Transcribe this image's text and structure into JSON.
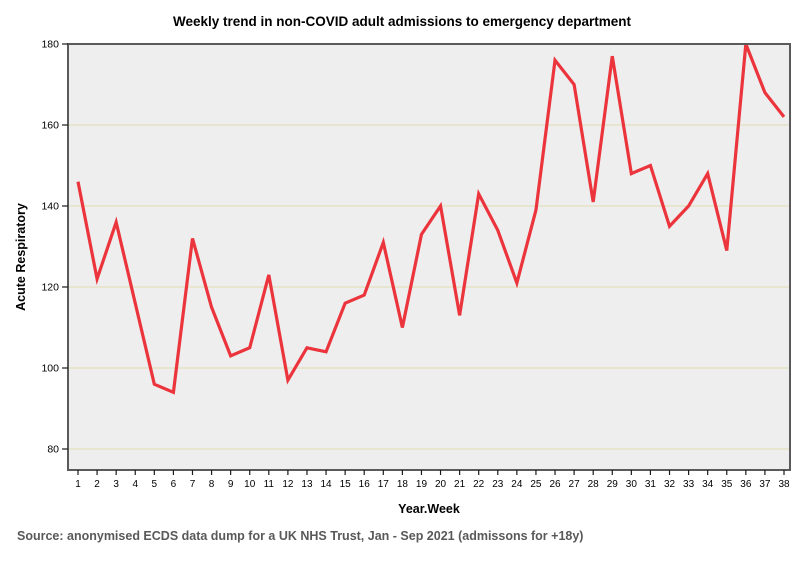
{
  "chart_data": {
    "type": "line",
    "title": "Weekly trend in non-COVID adult admissions to emergency department",
    "xlabel": "Year.Week",
    "ylabel": "Acute Respiratory",
    "x": [
      1,
      2,
      3,
      4,
      5,
      6,
      7,
      8,
      9,
      10,
      11,
      12,
      13,
      14,
      15,
      16,
      17,
      18,
      19,
      20,
      21,
      22,
      23,
      24,
      25,
      26,
      27,
      28,
      29,
      30,
      31,
      32,
      33,
      34,
      35,
      36,
      37,
      38
    ],
    "values": [
      146,
      122,
      136,
      116,
      96,
      94,
      132,
      115,
      103,
      105,
      123,
      97,
      105,
      104,
      116,
      118,
      131,
      110,
      133,
      140,
      113,
      143,
      134,
      121,
      139,
      176,
      170,
      141,
      177,
      148,
      150,
      135,
      140,
      148,
      129,
      180,
      168,
      162
    ],
    "ylim": [
      75,
      180
    ],
    "yticks": [
      80,
      100,
      120,
      140,
      160,
      180
    ],
    "xticks": [
      1,
      2,
      3,
      4,
      5,
      6,
      7,
      8,
      9,
      10,
      11,
      12,
      13,
      14,
      15,
      16,
      17,
      18,
      19,
      20,
      21,
      22,
      23,
      24,
      25,
      26,
      27,
      28,
      29,
      30,
      31,
      32,
      33,
      34,
      35,
      36,
      37,
      38
    ],
    "grid": "horizontal",
    "legend": "none",
    "line_color": "#eb343c",
    "plot_bg": "#eeeeee",
    "gridline_color": "#e0dcb2",
    "frame_color": "#5a5a5a",
    "tick_color": "#1a1a1a",
    "source_note": "Source: anonymised ECDS data dump for a UK NHS Trust, Jan - Sep 2021 (admissons for +18y)"
  }
}
